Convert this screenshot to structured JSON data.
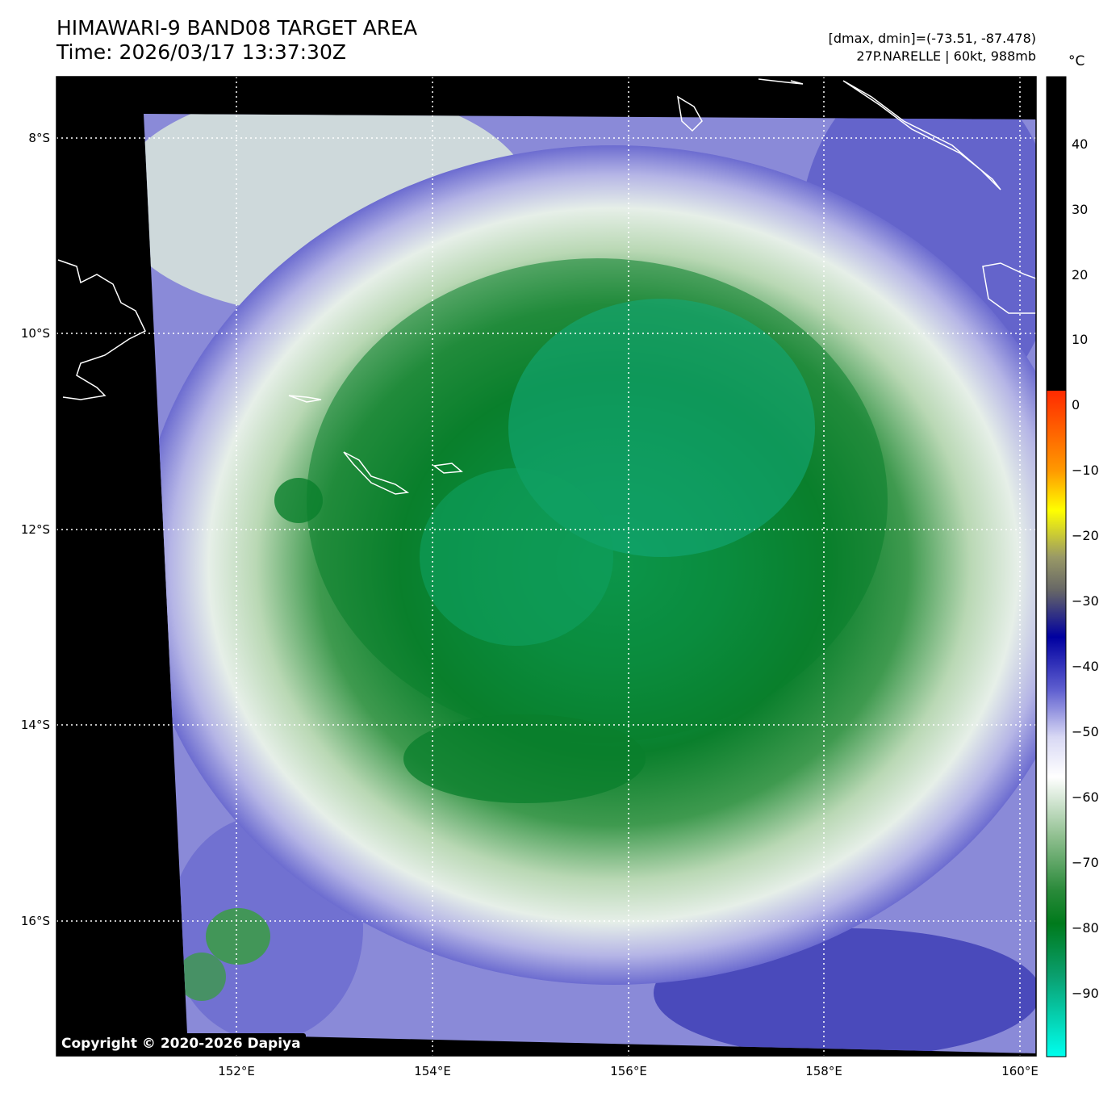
{
  "header": {
    "title_line1": "HIMAWARI-9 BAND08 TARGET AREA",
    "title_line2": "Time: 2026/03/17 13:37:30Z",
    "dmax_dmin": "[dmax, dmin]=(-73.51, -87.478)",
    "storm_info": "27P.NARELLE | 60kt, 988mb"
  },
  "axes": {
    "lat_labels": [
      "8°S",
      "10°S",
      "12°S",
      "14°S",
      "16°S"
    ],
    "lon_labels": [
      "152°E",
      "154°E",
      "156°E",
      "158°E",
      "160°E"
    ]
  },
  "colorbar": {
    "unit": "°C",
    "ticks": [
      "40",
      "30",
      "20",
      "10",
      "0",
      "−10",
      "−20",
      "−30",
      "−40",
      "−50",
      "−60",
      "−70",
      "−80",
      "−90"
    ],
    "colors": {
      "warm": "#000000",
      "red": "#ff2a00",
      "yellow": "#ffff00",
      "gray": "#777777",
      "navy": "#0000a0",
      "blue": "#3030c0",
      "lavender": "#c8c8ee",
      "white": "#ffffff",
      "green_light": "#6faa6f",
      "green_dark": "#007a1c",
      "cyan": "#00ffee"
    }
  },
  "footer": {
    "copyright": "Copyright © 2020-2026 Dapiya"
  }
}
